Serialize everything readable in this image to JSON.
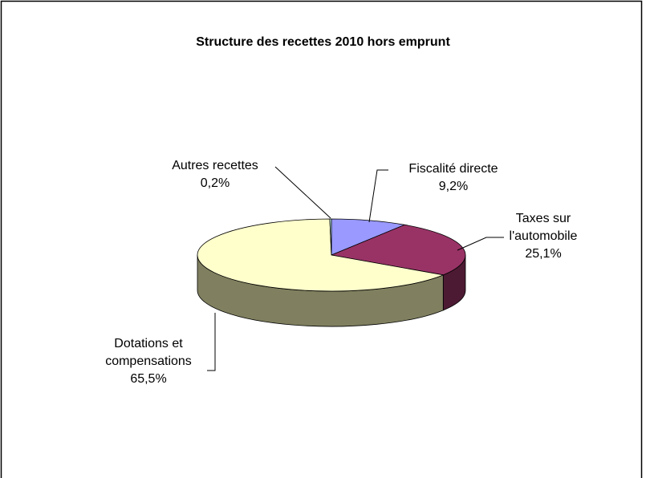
{
  "chart_data": {
    "type": "pie3d",
    "title": "Structure des recettes 2010 hors emprunt",
    "categories": [
      "Fiscalité directe",
      "Taxes sur l'automobile",
      "Dotations et compensations",
      "Autres recettes"
    ],
    "values": [
      9.2,
      25.1,
      65.5,
      0.2
    ],
    "value_labels": [
      "9,2%",
      "25,1%",
      "65,5%",
      "0,2%"
    ],
    "colors": [
      "#9999ff",
      "#993366",
      "#ffffcc",
      "#ccffff"
    ],
    "side_colors": [
      "#5c5c99",
      "#4d1a33",
      "#808060",
      "#7a9999"
    ]
  }
}
